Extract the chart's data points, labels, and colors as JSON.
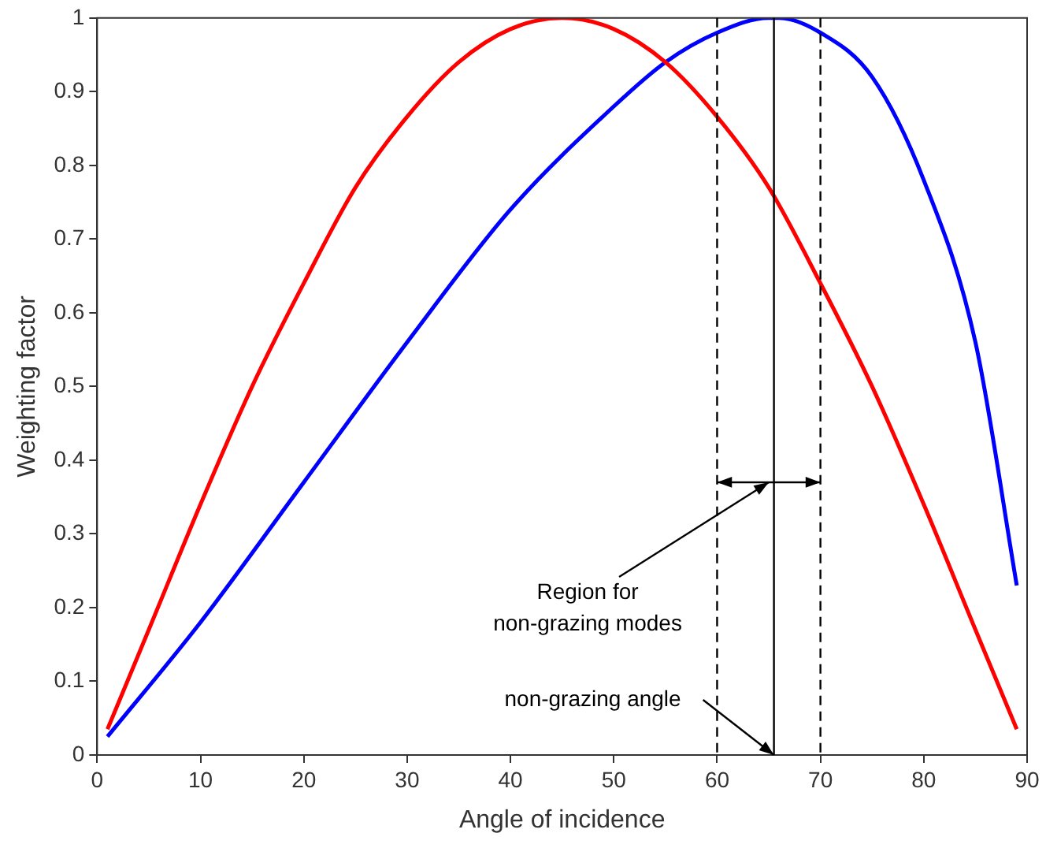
{
  "chart_data": {
    "type": "line",
    "xlabel": "Angle of incidence",
    "ylabel": "Weighting factor",
    "xlim": [
      0,
      90
    ],
    "ylim": [
      0,
      1
    ],
    "xticks": [
      0,
      10,
      20,
      30,
      40,
      50,
      60,
      70,
      80,
      90
    ],
    "yticks": [
      0,
      0.1,
      0.2,
      0.3,
      0.4,
      0.5,
      0.6,
      0.7,
      0.8,
      0.9,
      1
    ],
    "grid": false,
    "legend": false,
    "marker": "none",
    "line_style": "solid",
    "series": [
      {
        "color": "#ff0000",
        "x": [
          1,
          5,
          10,
          15,
          20,
          25,
          30,
          35,
          40,
          45,
          50,
          55,
          60,
          65,
          70,
          75,
          80,
          85,
          89
        ],
        "values": [
          0.035,
          0.17,
          0.34,
          0.5,
          0.64,
          0.77,
          0.866,
          0.94,
          0.985,
          1,
          0.985,
          0.94,
          0.866,
          0.77,
          0.64,
          0.5,
          0.34,
          0.17,
          0.035
        ]
      },
      {
        "color": "#0000ff",
        "x": [
          1,
          10,
          20,
          30,
          40,
          50,
          55,
          60,
          65,
          66,
          70,
          75,
          80,
          85,
          89
        ],
        "values": [
          0.025,
          0.18,
          0.37,
          0.56,
          0.74,
          0.88,
          0.94,
          0.98,
          1,
          1,
          0.98,
          0.92,
          0.78,
          0.56,
          0.23
        ]
      }
    ],
    "ref_lines": [
      {
        "axis": "x",
        "value": 60,
        "line_style": "dashed",
        "color": "#000000"
      },
      {
        "axis": "x",
        "value": 70,
        "line_style": "dashed",
        "color": "#000000"
      },
      {
        "axis": "x",
        "value": 65.5,
        "line_style": "solid",
        "color": "#000000"
      }
    ],
    "annotations": [
      {
        "text": "Region for\nnon-grazing modes",
        "x": 65,
        "y": 0.37
      },
      {
        "text": "non-grazing angle",
        "x": 65.5,
        "y": 0
      }
    ]
  }
}
